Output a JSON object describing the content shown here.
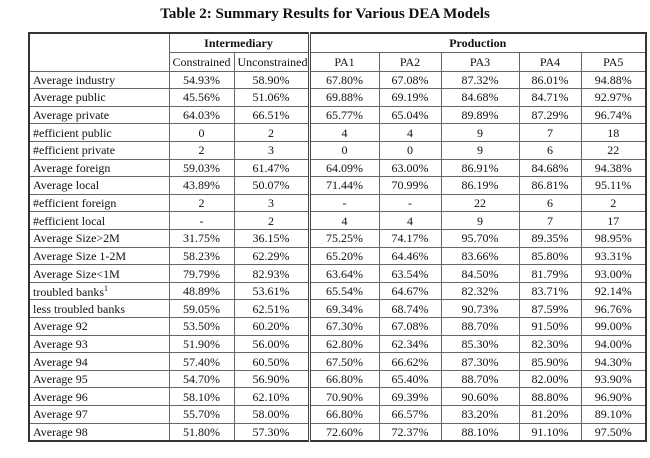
{
  "title": "Table 2: Summary Results for Various DEA Models",
  "header": {
    "groups": [
      "Intermediary",
      "Production"
    ],
    "columns": [
      "Constrained",
      "Unconstrained",
      "PA1",
      "PA2",
      "PA3",
      "PA4",
      "PA5"
    ]
  },
  "table": {
    "rows": [
      {
        "label": "Average industry",
        "cells": [
          "54.93%",
          "58.90%",
          "67.80%",
          "67.08%",
          "87.32%",
          "86.01%",
          "94.88%"
        ]
      },
      {
        "label": "Average public",
        "cells": [
          "45.56%",
          "51.06%",
          "69.88%",
          "69.19%",
          "84.68%",
          "84.71%",
          "92.97%"
        ]
      },
      {
        "label": "Average private",
        "cells": [
          "64.03%",
          "66.51%",
          "65.77%",
          "65.04%",
          "89.89%",
          "87.29%",
          "96.74%"
        ]
      },
      {
        "label": "#efficient public",
        "cells": [
          "0",
          "2",
          "4",
          "4",
          "9",
          "7",
          "18"
        ]
      },
      {
        "label": "#efficient private",
        "cells": [
          "2",
          "3",
          "0",
          "0",
          "9",
          "6",
          "22"
        ]
      },
      {
        "label": "Average foreign",
        "cells": [
          "59.03%",
          "61.47%",
          "64.09%",
          "63.00%",
          "86.91%",
          "84.68%",
          "94.38%"
        ]
      },
      {
        "label": "Average local",
        "cells": [
          "43.89%",
          "50.07%",
          "71.44%",
          "70.99%",
          "86.19%",
          "86.81%",
          "95.11%"
        ]
      },
      {
        "label": "#efficient foreign",
        "cells": [
          "2",
          "3",
          "-",
          "-",
          "22",
          "6",
          "2"
        ]
      },
      {
        "label": "#efficient local",
        "cells": [
          "-",
          "2",
          "4",
          "4",
          "9",
          "7",
          "17"
        ]
      },
      {
        "label": "Average Size>2M",
        "cells": [
          "31.75%",
          "36.15%",
          "75.25%",
          "74.17%",
          "95.70%",
          "89.35%",
          "98.95%"
        ]
      },
      {
        "label": "Average Size 1-2M",
        "cells": [
          "58.23%",
          "62.29%",
          "65.20%",
          "64.46%",
          "83.66%",
          "85.80%",
          "93.31%"
        ]
      },
      {
        "label": "Average Size<1M",
        "cells": [
          "79.79%",
          "82.93%",
          "63.64%",
          "63.54%",
          "84.50%",
          "81.79%",
          "93.00%"
        ]
      },
      {
        "label": "troubled banks",
        "note": "1",
        "cells": [
          "48.89%",
          "53.61%",
          "65.54%",
          "64.67%",
          "82.32%",
          "83.71%",
          "92.14%"
        ]
      },
      {
        "label": "less troubled banks",
        "cells": [
          "59.05%",
          "62.51%",
          "69.34%",
          "68.74%",
          "90.73%",
          "87.59%",
          "96.76%"
        ]
      },
      {
        "label": "Average 92",
        "cells": [
          "53.50%",
          "60.20%",
          "67.30%",
          "67.08%",
          "88.70%",
          "91.50%",
          "99.00%"
        ]
      },
      {
        "label": "Average 93",
        "cells": [
          "51.90%",
          "56.00%",
          "62.80%",
          "62.34%",
          "85.30%",
          "82.30%",
          "94.00%"
        ]
      },
      {
        "label": "Average 94",
        "cells": [
          "57.40%",
          "60.50%",
          "67.50%",
          "66.62%",
          "87.30%",
          "85.90%",
          "94.30%"
        ]
      },
      {
        "label": "Average 95",
        "cells": [
          "54.70%",
          "56.90%",
          "66.80%",
          "65.40%",
          "88.70%",
          "82.00%",
          "93.90%"
        ]
      },
      {
        "label": "Average 96",
        "cells": [
          "58.10%",
          "62.10%",
          "70.90%",
          "69.39%",
          "90.60%",
          "88.80%",
          "96.90%"
        ]
      },
      {
        "label": "Average 97",
        "cells": [
          "55.70%",
          "58.00%",
          "66.80%",
          "66.57%",
          "83.20%",
          "81.20%",
          "89.10%"
        ]
      },
      {
        "label": "Average 98",
        "cells": [
          "51.80%",
          "57.30%",
          "72.60%",
          "72.37%",
          "88.10%",
          "91.10%",
          "97.50%"
        ]
      }
    ]
  }
}
